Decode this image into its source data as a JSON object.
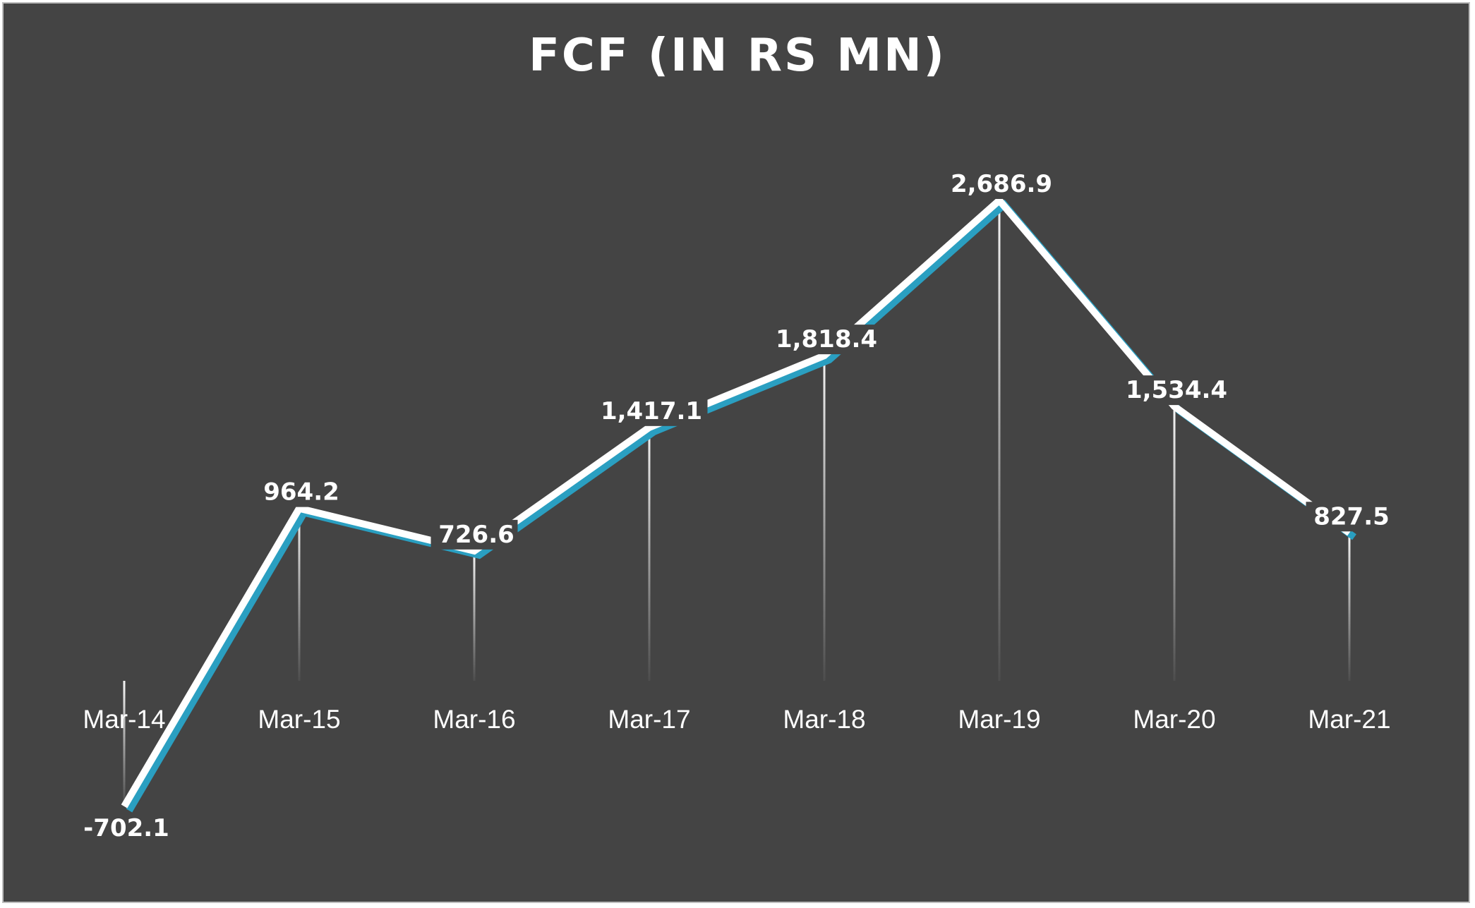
{
  "chart_data": {
    "type": "line",
    "title": "FCF (IN RS MN)",
    "xlabel": "",
    "ylabel": "",
    "categories": [
      "Mar-14",
      "Mar-15",
      "Mar-16",
      "Mar-17",
      "Mar-18",
      "Mar-19",
      "Mar-20",
      "Mar-21"
    ],
    "series": [
      {
        "values": [
          -702.1,
          964.2,
          726.6,
          1417.1,
          1818.4,
          2686.9,
          1534.4,
          827.5
        ],
        "labels": [
          "-702.1",
          "964.2",
          "726.6",
          "1,417.1",
          "1,818.4",
          "2,686.9",
          "1,534.4",
          "827.5"
        ]
      }
    ],
    "grid": false,
    "legend": "none",
    "drop_lines": true,
    "colors": {
      "background": "#444444",
      "frame": "#bdbdbd",
      "line": "#ffffff",
      "line_shadow": "#2a9fc1",
      "text": "#ffffff",
      "drop_line": "#ffffff"
    }
  }
}
